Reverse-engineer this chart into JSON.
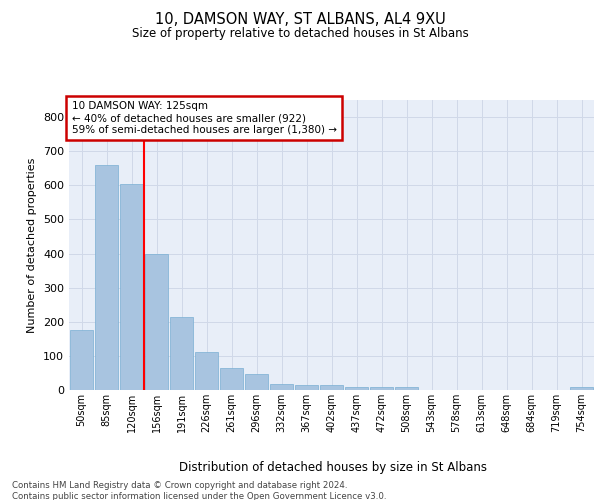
{
  "title": "10, DAMSON WAY, ST ALBANS, AL4 9XU",
  "subtitle": "Size of property relative to detached houses in St Albans",
  "xlabel": "Distribution of detached houses by size in St Albans",
  "ylabel": "Number of detached properties",
  "footer_line1": "Contains HM Land Registry data © Crown copyright and database right 2024.",
  "footer_line2": "Contains public sector information licensed under the Open Government Licence v3.0.",
  "categories": [
    "50sqm",
    "85sqm",
    "120sqm",
    "156sqm",
    "191sqm",
    "226sqm",
    "261sqm",
    "296sqm",
    "332sqm",
    "367sqm",
    "402sqm",
    "437sqm",
    "472sqm",
    "508sqm",
    "543sqm",
    "578sqm",
    "613sqm",
    "648sqm",
    "684sqm",
    "719sqm",
    "754sqm"
  ],
  "values": [
    175,
    660,
    605,
    400,
    215,
    110,
    65,
    48,
    18,
    15,
    15,
    10,
    8,
    8,
    0,
    0,
    0,
    0,
    0,
    0,
    8
  ],
  "bar_color": "#a8c4e0",
  "bar_edge_color": "#7aafd4",
  "grid_color": "#d0d8e8",
  "background_color": "#e8eef8",
  "red_line_x": 2.5,
  "annotation_text": "10 DAMSON WAY: 125sqm\n← 40% of detached houses are smaller (922)\n59% of semi-detached houses are larger (1,380) →",
  "annotation_box_color": "#ffffff",
  "annotation_box_edge_color": "#cc0000",
  "ylim": [
    0,
    850
  ],
  "yticks": [
    0,
    100,
    200,
    300,
    400,
    500,
    600,
    700,
    800
  ]
}
